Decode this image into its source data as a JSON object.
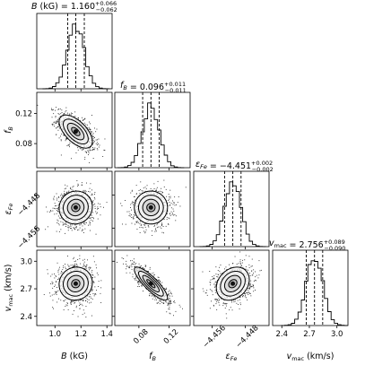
{
  "chart_data": {
    "type": "corner",
    "parameters": [
      {
        "key": "B",
        "axis_label": "B (kG)",
        "tick_values": [
          1.0,
          1.2,
          1.4
        ],
        "tick_labels": [
          "1.0",
          "1.2",
          "1.4"
        ],
        "range": [
          0.86,
          1.44
        ],
        "title_name": "B (kG)",
        "median": 1.16,
        "median_label": "1.160",
        "err_plus": 0.066,
        "err_plus_label": "+0.066",
        "err_minus": 0.062,
        "err_minus_label": "−0.062",
        "std": 0.064
      },
      {
        "key": "f_B",
        "axis_label": "f_B",
        "tick_values": [
          0.08,
          0.12
        ],
        "tick_labels": [
          "0.08",
          "0.12"
        ],
        "range": [
          0.048,
          0.148
        ],
        "title_name": "f_B",
        "median": 0.096,
        "median_label": "0.096",
        "err_plus": 0.011,
        "err_plus_label": "+0.011",
        "err_minus": 0.011,
        "err_minus_label": "−0.011",
        "std": 0.011
      },
      {
        "key": "eps_Fe",
        "axis_label": "ε_Fe",
        "tick_values": [
          -4.456,
          -4.448
        ],
        "tick_labels": [
          "−4.456",
          "−4.448"
        ],
        "range": [
          -4.4605,
          -4.4422
        ],
        "title_name": "ε_Fe",
        "median": -4.451,
        "median_label": "−4.451",
        "err_plus": 0.002,
        "err_plus_label": "+0.002",
        "err_minus": 0.002,
        "err_minus_label": "−0.002",
        "std": 0.002
      },
      {
        "key": "v_mac",
        "axis_label": "v_mac (km/s)",
        "tick_values": [
          2.4,
          2.7,
          3.0
        ],
        "tick_labels": [
          "2.4",
          "2.7",
          "3.0"
        ],
        "range": [
          2.3,
          3.12
        ],
        "title_name": "v_mac",
        "median": 2.756,
        "median_label": "2.756",
        "err_plus": 0.089,
        "err_plus_label": "+0.089",
        "err_minus": 0.09,
        "err_minus_label": "−0.090",
        "std": 0.09
      }
    ],
    "correlations": [
      {
        "pair": [
          "B",
          "f_B"
        ],
        "rho": -0.6
      },
      {
        "pair": [
          "B",
          "eps_Fe"
        ],
        "rho": 0.05
      },
      {
        "pair": [
          "f_B",
          "eps_Fe"
        ],
        "rho": 0.0
      },
      {
        "pair": [
          "B",
          "v_mac"
        ],
        "rho": 0.05
      },
      {
        "pair": [
          "f_B",
          "v_mac"
        ],
        "rho": -0.85
      },
      {
        "pair": [
          "eps_Fe",
          "v_mac"
        ],
        "rho": 0.25
      }
    ],
    "quantile_lines": "dashed at 16th, 50th, 84th percentiles",
    "contour_levels_sigma": [
      0.5,
      1.0,
      1.5,
      2.0
    ],
    "grid": false
  }
}
